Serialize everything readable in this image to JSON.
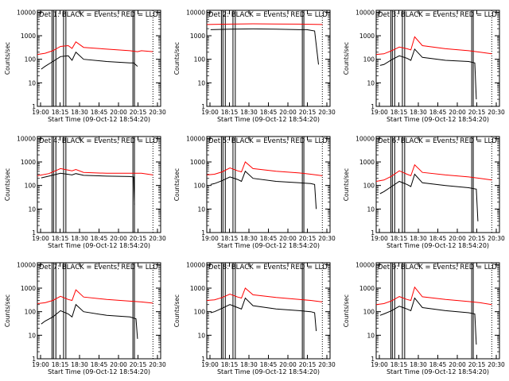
{
  "chart_data": [
    {
      "type": "line",
      "title": "Det 1: BLACK = Events, RED = LLD",
      "xlabel": "Start Time (09-Oct-12 18:54:20)",
      "ylabel": "Counts/sec",
      "xlim": [
        "18:00",
        "20:40"
      ],
      "ylim": [
        1,
        12000
      ],
      "yscale": "log",
      "x_ticks": [
        "19:00",
        "18:15",
        "18:30",
        "18:45",
        "20:00",
        "20:15",
        "20:30"
      ],
      "y_ticks": [
        "1",
        "10",
        "100",
        "1000",
        "10000"
      ],
      "solid_vlines": [
        "18:19",
        "18:21",
        "18:24",
        "18:34",
        "18:37",
        "20:04",
        "20:06"
      ],
      "dotted_vlines": [
        "20:30"
      ],
      "series": [
        {
          "name": "RED = LLD",
          "color": "#ff0000",
          "x": [
            "18:00",
            "18:10",
            "18:20",
            "18:30",
            "18:40",
            "18:45",
            "18:50",
            "19:00",
            "19:30",
            "20:00",
            "20:10",
            "20:15",
            "20:30"
          ],
          "y": [
            160,
            180,
            230,
            350,
            380,
            290,
            550,
            320,
            270,
            230,
            210,
            230,
            210
          ]
        },
        {
          "name": "BLACK = Events",
          "color": "#000000",
          "x": [
            "18:05",
            "18:10",
            "18:20",
            "18:30",
            "18:40",
            "18:45",
            "18:50",
            "19:00",
            "19:30",
            "20:00",
            "20:05",
            "20:10"
          ],
          "y": [
            38,
            50,
            80,
            130,
            140,
            90,
            200,
            100,
            80,
            70,
            70,
            50
          ]
        }
      ]
    },
    {
      "type": "line",
      "title": "Det 2: BLACK = Events, RED = LLD",
      "xlabel": "Start Time (09-Oct-12 18:54:20)",
      "ylabel": "Counts/sec",
      "xlim": [
        "18:00",
        "20:40"
      ],
      "ylim": [
        1,
        12000
      ],
      "yscale": "log",
      "x_ticks": [
        "19:00",
        "18:15",
        "18:30",
        "18:45",
        "20:00",
        "20:15",
        "20:30"
      ],
      "y_ticks": [
        "1",
        "10",
        "100",
        "1000",
        "10000"
      ],
      "solid_vlines": [
        "18:19",
        "18:21",
        "18:24",
        "18:34",
        "18:37",
        "20:04",
        "20:06"
      ],
      "dotted_vlines": [
        "20:30"
      ],
      "series": [
        {
          "name": "RED = LLD",
          "color": "#ff0000",
          "x": [
            "18:00",
            "18:30",
            "19:00",
            "19:30",
            "20:00",
            "20:30"
          ],
          "y": [
            3000,
            3100,
            3200,
            3150,
            3100,
            3000
          ]
        },
        {
          "name": "BLACK = Events",
          "color": "#000000",
          "x": [
            "18:05",
            "18:30",
            "19:00",
            "19:30",
            "20:00",
            "20:10",
            "20:20",
            "20:25"
          ],
          "y": [
            1800,
            1900,
            1950,
            1900,
            1800,
            1800,
            1600,
            60
          ]
        }
      ]
    },
    {
      "type": "line",
      "title": "Det 3: BLACK = Events, RED = LLD",
      "xlabel": "Start Time (09-Oct-12 18:54:20)",
      "ylabel": "Counts/sec",
      "xlim": [
        "18:00",
        "20:40"
      ],
      "ylim": [
        1,
        12000
      ],
      "yscale": "log",
      "x_ticks": [
        "19:00",
        "18:15",
        "18:30",
        "18:45",
        "20:00",
        "20:15",
        "20:30"
      ],
      "y_ticks": [
        "1",
        "10",
        "100",
        "1000",
        "10000"
      ],
      "solid_vlines": [
        "18:19",
        "18:21",
        "18:24",
        "18:34",
        "18:37",
        "20:04",
        "20:06"
      ],
      "dotted_vlines": [
        "20:30"
      ],
      "series": [
        {
          "name": "RED = LLD",
          "color": "#ff0000",
          "x": [
            "18:00",
            "18:10",
            "18:20",
            "18:30",
            "18:40",
            "18:45",
            "18:50",
            "19:00",
            "19:30",
            "20:00",
            "20:15",
            "20:30"
          ],
          "y": [
            160,
            170,
            230,
            330,
            280,
            250,
            900,
            380,
            280,
            230,
            200,
            170
          ]
        },
        {
          "name": "BLACK = Events",
          "color": "#000000",
          "x": [
            "18:05",
            "18:10",
            "18:20",
            "18:30",
            "18:40",
            "18:45",
            "18:50",
            "19:00",
            "19:30",
            "20:00",
            "20:08",
            "20:10"
          ],
          "y": [
            55,
            60,
            95,
            140,
            110,
            90,
            270,
            120,
            90,
            80,
            70,
            2
          ]
        }
      ]
    },
    {
      "type": "line",
      "title": "Det 4: BLACK = Events, RED = LLD",
      "xlabel": "Start Time (09-Oct-12 18:54:20)",
      "ylabel": "Counts/sec",
      "xlim": [
        "18:00",
        "20:40"
      ],
      "ylim": [
        1,
        12000
      ],
      "yscale": "log",
      "x_ticks": [
        "19:00",
        "18:15",
        "18:30",
        "18:45",
        "20:00",
        "20:15",
        "20:30"
      ],
      "y_ticks": [
        "1",
        "10",
        "100",
        "1000",
        "10000"
      ],
      "solid_vlines": [
        "18:19",
        "18:21",
        "18:24",
        "18:34",
        "18:37",
        "20:04",
        "20:06"
      ],
      "dotted_vlines": [
        "20:30"
      ],
      "series": [
        {
          "name": "RED = LLD",
          "color": "#ff0000",
          "x": [
            "18:00",
            "18:15",
            "18:30",
            "18:45",
            "18:50",
            "19:00",
            "19:30",
            "20:00",
            "20:15",
            "20:30"
          ],
          "y": [
            260,
            320,
            520,
            420,
            480,
            360,
            330,
            330,
            330,
            280
          ]
        },
        {
          "name": "BLACK = Events",
          "color": "#000000",
          "x": [
            "18:05",
            "18:15",
            "18:30",
            "18:45",
            "18:50",
            "19:00",
            "19:30",
            "20:00",
            "20:05",
            "20:06"
          ],
          "y": [
            210,
            250,
            330,
            280,
            320,
            270,
            250,
            240,
            230,
            15
          ]
        }
      ]
    },
    {
      "type": "line",
      "title": "Det 5: BLACK = Events, RED = LLD",
      "xlabel": "Start Time (09-Oct-12 18:54:20)",
      "ylabel": "Counts/sec",
      "xlim": [
        "18:00",
        "20:40"
      ],
      "ylim": [
        1,
        12000
      ],
      "yscale": "log",
      "x_ticks": [
        "19:00",
        "18:15",
        "18:30",
        "18:45",
        "20:00",
        "20:15",
        "20:30"
      ],
      "y_ticks": [
        "1",
        "10",
        "100",
        "1000",
        "10000"
      ],
      "solid_vlines": [
        "18:19",
        "18:21",
        "18:24",
        "18:34",
        "18:37",
        "20:04",
        "20:06"
      ],
      "dotted_vlines": [
        "20:30"
      ],
      "series": [
        {
          "name": "RED = LLD",
          "color": "#ff0000",
          "x": [
            "18:00",
            "18:10",
            "18:20",
            "18:30",
            "18:40",
            "18:45",
            "18:50",
            "19:00",
            "19:30",
            "20:00",
            "20:15",
            "20:30"
          ],
          "y": [
            280,
            300,
            380,
            560,
            420,
            380,
            1000,
            520,
            400,
            340,
            300,
            260
          ]
        },
        {
          "name": "BLACK = Events",
          "color": "#000000",
          "x": [
            "18:05",
            "18:10",
            "18:20",
            "18:30",
            "18:40",
            "18:45",
            "18:50",
            "19:00",
            "19:30",
            "20:00",
            "20:15",
            "20:20",
            "20:22"
          ],
          "y": [
            110,
            120,
            160,
            230,
            180,
            150,
            400,
            200,
            150,
            130,
            120,
            110,
            10
          ]
        }
      ]
    },
    {
      "type": "line",
      "title": "Det 6: BLACK = Events, RED = LLD",
      "xlabel": "Start Time (09-Oct-12 18:54:20)",
      "ylabel": "Counts/sec",
      "xlim": [
        "18:00",
        "20:40"
      ],
      "ylim": [
        1,
        12000
      ],
      "yscale": "log",
      "x_ticks": [
        "19:00",
        "18:15",
        "18:30",
        "18:45",
        "20:00",
        "20:15",
        "20:30"
      ],
      "y_ticks": [
        "1",
        "10",
        "100",
        "1000",
        "10000"
      ],
      "solid_vlines": [
        "18:19",
        "18:21",
        "18:24",
        "18:34",
        "18:37",
        "20:04",
        "20:06"
      ],
      "dotted_vlines": [
        "20:30"
      ],
      "series": [
        {
          "name": "RED = LLD",
          "color": "#ff0000",
          "x": [
            "18:00",
            "18:10",
            "18:20",
            "18:30",
            "18:40",
            "18:45",
            "18:50",
            "19:00",
            "19:30",
            "20:00",
            "20:15",
            "20:30"
          ],
          "y": [
            150,
            170,
            250,
            420,
            300,
            260,
            750,
            360,
            280,
            230,
            200,
            170
          ]
        },
        {
          "name": "BLACK = Events",
          "color": "#000000",
          "x": [
            "18:05",
            "18:10",
            "18:20",
            "18:30",
            "18:40",
            "18:45",
            "18:50",
            "19:00",
            "19:30",
            "20:00",
            "20:10",
            "20:12"
          ],
          "y": [
            45,
            55,
            90,
            150,
            110,
            90,
            300,
            130,
            100,
            80,
            70,
            3
          ]
        }
      ]
    },
    {
      "type": "line",
      "title": "Det 7: BLACK = Events, RED = LLD",
      "xlabel": "Start Time (09-Oct-12 18:54:20)",
      "ylabel": "Counts/sec",
      "xlim": [
        "18:00",
        "20:40"
      ],
      "ylim": [
        1,
        12000
      ],
      "yscale": "log",
      "x_ticks": [
        "19:00",
        "18:15",
        "18:30",
        "18:45",
        "20:00",
        "20:15",
        "20:30"
      ],
      "y_ticks": [
        "1",
        "10",
        "100",
        "1000",
        "10000"
      ],
      "solid_vlines": [
        "18:19",
        "18:21",
        "18:24",
        "18:34",
        "18:37",
        "20:04",
        "20:06"
      ],
      "dotted_vlines": [
        "20:30"
      ],
      "series": [
        {
          "name": "RED = LLD",
          "color": "#ff0000",
          "x": [
            "18:00",
            "18:10",
            "18:20",
            "18:30",
            "18:40",
            "18:45",
            "18:50",
            "19:00",
            "19:30",
            "20:00",
            "20:15",
            "20:30"
          ],
          "y": [
            220,
            240,
            300,
            450,
            330,
            300,
            850,
            420,
            330,
            280,
            260,
            230
          ]
        },
        {
          "name": "BLACK = Events",
          "color": "#000000",
          "x": [
            "18:05",
            "18:10",
            "18:20",
            "18:30",
            "18:40",
            "18:45",
            "18:50",
            "19:00",
            "19:30",
            "20:00",
            "20:08",
            "20:10"
          ],
          "y": [
            30,
            40,
            60,
            110,
            80,
            60,
            200,
            100,
            70,
            60,
            50,
            7
          ]
        }
      ]
    },
    {
      "type": "line",
      "title": "Det 8: BLACK = Events, RED = LLD",
      "xlabel": "Start Time (09-Oct-12 18:54:20)",
      "ylabel": "Counts/sec",
      "xlim": [
        "18:00",
        "20:40"
      ],
      "ylim": [
        1,
        12000
      ],
      "yscale": "log",
      "x_ticks": [
        "19:00",
        "18:15",
        "18:30",
        "18:45",
        "20:00",
        "20:15",
        "20:30"
      ],
      "y_ticks": [
        "1",
        "10",
        "100",
        "1000",
        "10000"
      ],
      "solid_vlines": [
        "18:19",
        "18:21",
        "18:24",
        "18:34",
        "18:37",
        "20:04",
        "20:06"
      ],
      "dotted_vlines": [
        "20:30"
      ],
      "series": [
        {
          "name": "RED = LLD",
          "color": "#ff0000",
          "x": [
            "18:00",
            "18:10",
            "18:20",
            "18:30",
            "18:40",
            "18:45",
            "18:50",
            "19:00",
            "19:30",
            "20:00",
            "20:15",
            "20:30"
          ],
          "y": [
            300,
            320,
            400,
            560,
            420,
            380,
            1000,
            520,
            400,
            330,
            300,
            260
          ]
        },
        {
          "name": "BLACK = Events",
          "color": "#000000",
          "x": [
            "18:05",
            "18:10",
            "18:20",
            "18:30",
            "18:40",
            "18:45",
            "18:50",
            "19:00",
            "19:30",
            "20:00",
            "20:15",
            "20:20",
            "20:22"
          ],
          "y": [
            90,
            100,
            140,
            200,
            150,
            130,
            380,
            180,
            130,
            110,
            100,
            90,
            15
          ]
        }
      ]
    },
    {
      "type": "line",
      "title": "Det 9: BLACK = Events, RED = LLD",
      "xlabel": "Start Time (09-Oct-12 18:54:20)",
      "ylabel": "Counts/sec",
      "xlim": [
        "18:00",
        "20:40"
      ],
      "ylim": [
        1,
        12000
      ],
      "yscale": "log",
      "x_ticks": [
        "19:00",
        "18:15",
        "18:30",
        "18:45",
        "20:00",
        "20:15",
        "20:30"
      ],
      "y_ticks": [
        "1",
        "10",
        "100",
        "1000",
        "10000"
      ],
      "solid_vlines": [
        "18:19",
        "18:21",
        "18:24",
        "18:34",
        "18:37",
        "20:04",
        "20:06"
      ],
      "dotted_vlines": [
        "20:30"
      ],
      "series": [
        {
          "name": "RED = LLD",
          "color": "#ff0000",
          "x": [
            "18:00",
            "18:10",
            "18:20",
            "18:30",
            "18:40",
            "18:45",
            "18:50",
            "19:00",
            "19:30",
            "20:00",
            "20:15",
            "20:30"
          ],
          "y": [
            200,
            220,
            290,
            440,
            330,
            300,
            1100,
            430,
            330,
            270,
            240,
            200
          ]
        },
        {
          "name": "BLACK = Events",
          "color": "#000000",
          "x": [
            "18:05",
            "18:10",
            "18:20",
            "18:30",
            "18:40",
            "18:45",
            "18:50",
            "19:00",
            "19:30",
            "20:00",
            "20:08",
            "20:10"
          ],
          "y": [
            70,
            80,
            110,
            170,
            130,
            110,
            380,
            150,
            110,
            90,
            80,
            4
          ]
        }
      ]
    }
  ]
}
